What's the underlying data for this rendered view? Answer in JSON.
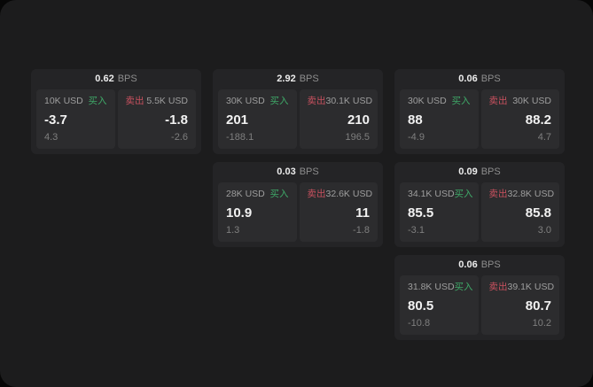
{
  "labels": {
    "bps_unit": "BPS",
    "buy": "买入",
    "sell": "卖出"
  },
  "colors": {
    "page_bg": "#1c1c1d",
    "card_bg": "#242426",
    "panel_bg": "#2c2c2e",
    "buy": "#3fa968",
    "sell": "#c9515f"
  },
  "cards": [
    {
      "bps": "0.62",
      "buy": {
        "amount": "10K USD",
        "price": "-3.7",
        "sub": "4.3"
      },
      "sell": {
        "amount": "5.5K USD",
        "price": "-1.8",
        "sub": "-2.6"
      }
    },
    {
      "bps": "2.92",
      "buy": {
        "amount": "30K USD",
        "price": "201",
        "sub": "-188.1"
      },
      "sell": {
        "amount": "30.1K USD",
        "price": "210",
        "sub": "196.5"
      }
    },
    {
      "bps": "0.06",
      "buy": {
        "amount": "30K USD",
        "price": "88",
        "sub": "-4.9"
      },
      "sell": {
        "amount": "30K USD",
        "price": "88.2",
        "sub": "4.7"
      }
    },
    {
      "bps": "0.03",
      "buy": {
        "amount": "28K USD",
        "price": "10.9",
        "sub": "1.3"
      },
      "sell": {
        "amount": "32.6K USD",
        "price": "11",
        "sub": "-1.8"
      }
    },
    {
      "bps": "0.09",
      "buy": {
        "amount": "34.1K USD",
        "price": "85.5",
        "sub": "-3.1"
      },
      "sell": {
        "amount": "32.8K USD",
        "price": "85.8",
        "sub": "3.0"
      }
    },
    {
      "bps": "0.06",
      "buy": {
        "amount": "31.8K USD",
        "price": "80.5",
        "sub": "-10.8"
      },
      "sell": {
        "amount": "39.1K USD",
        "price": "80.7",
        "sub": "10.2"
      }
    }
  ]
}
